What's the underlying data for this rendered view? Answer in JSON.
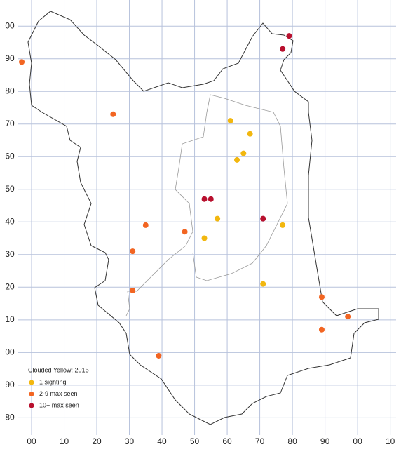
{
  "chart_data": {
    "type": "scatter",
    "legend_title": "Clouded Yellow:  2015",
    "xlim": [
      -4.3,
      111.8
    ],
    "ylim": [
      -25.3,
      108
    ],
    "xticks": [
      {
        "value": 0,
        "label": "00"
      },
      10,
      20,
      30,
      40,
      50,
      60,
      70,
      80,
      90,
      {
        "value": 100,
        "label": "00"
      },
      {
        "value": 110,
        "label": "10"
      }
    ],
    "yticks": [
      {
        "value": -20,
        "label": "80"
      },
      {
        "value": -10,
        "label": "90"
      },
      {
        "value": 0,
        "label": "00"
      },
      10,
      20,
      30,
      40,
      50,
      60,
      70,
      80,
      90,
      {
        "value": 100,
        "label": "00"
      }
    ],
    "grid": true,
    "series": [
      {
        "name": "1 sighting",
        "color": "#f2b70f",
        "x": [
          61,
          67,
          65,
          63,
          57,
          53,
          77,
          71
        ],
        "y": [
          71,
          67,
          61,
          59,
          41,
          35,
          39,
          21
        ]
      },
      {
        "name": "2-9 max seen",
        "color": "#f26522",
        "x": [
          -3,
          25,
          35,
          47,
          31,
          31,
          89,
          97,
          89,
          39
        ],
        "y": [
          89,
          73,
          39,
          37,
          31,
          19,
          17,
          11,
          7,
          -1
        ]
      },
      {
        "name": "10+ max seen",
        "color": "#b8102e",
        "x": [
          79,
          77,
          53,
          55,
          71
        ],
        "y": [
          97,
          93,
          47,
          47,
          41
        ]
      }
    ]
  }
}
